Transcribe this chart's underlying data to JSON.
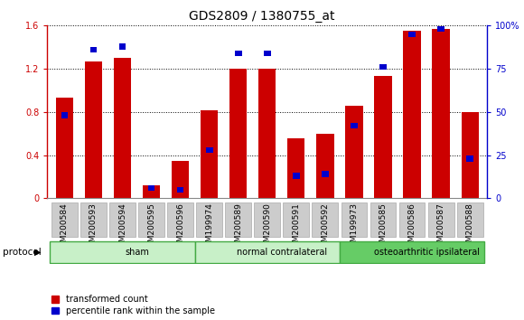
{
  "title": "GDS2809 / 1380755_at",
  "categories": [
    "GSM200584",
    "GSM200593",
    "GSM200594",
    "GSM200595",
    "GSM200596",
    "GSM199974",
    "GSM200589",
    "GSM200590",
    "GSM200591",
    "GSM200592",
    "GSM199973",
    "GSM200585",
    "GSM200586",
    "GSM200587",
    "GSM200588"
  ],
  "red_values": [
    0.93,
    1.27,
    1.3,
    0.12,
    0.35,
    0.82,
    1.2,
    1.2,
    0.56,
    0.6,
    0.86,
    1.13,
    1.55,
    1.57,
    0.8
  ],
  "blue_percentile": [
    48,
    86,
    88,
    6,
    5,
    28,
    84,
    84,
    13,
    14,
    42,
    76,
    95,
    98,
    23
  ],
  "groups": [
    {
      "label": "sham",
      "start": 0,
      "end": 5,
      "color": "#c8f0c8"
    },
    {
      "label": "normal contralateral",
      "start": 5,
      "end": 10,
      "color": "#c8f0c8"
    },
    {
      "label": "osteoarthritic ipsilateral",
      "start": 10,
      "end": 15,
      "color": "#78d878"
    }
  ],
  "left_ylim": [
    0,
    1.6
  ],
  "right_ylim": [
    0,
    100
  ],
  "left_yticks": [
    0,
    0.4,
    0.8,
    1.2,
    1.6
  ],
  "right_yticks": [
    0,
    25,
    50,
    75,
    100
  ],
  "left_yticklabels": [
    "0",
    "0.4",
    "0.8",
    "1.2",
    "1.6"
  ],
  "right_yticklabels": [
    "0",
    "25",
    "50",
    "75",
    "100%"
  ],
  "bar_color_red": "#cc0000",
  "bar_color_blue": "#0000cc",
  "bar_width": 0.6,
  "protocol_label": "protocol",
  "legend_red": "transformed count",
  "legend_blue": "percentile rank within the sample",
  "group_border_color": "#44aa44",
  "group1_color": "#c8f0c8",
  "group2_color": "#66cc66",
  "title_fontsize": 10,
  "tick_fontsize": 7,
  "xlabel_fontsize": 6.5,
  "left_tick_color": "#cc0000",
  "right_tick_color": "#0000cc",
  "xtick_bg_color": "#cccccc",
  "bottom_border_color": "#888888"
}
